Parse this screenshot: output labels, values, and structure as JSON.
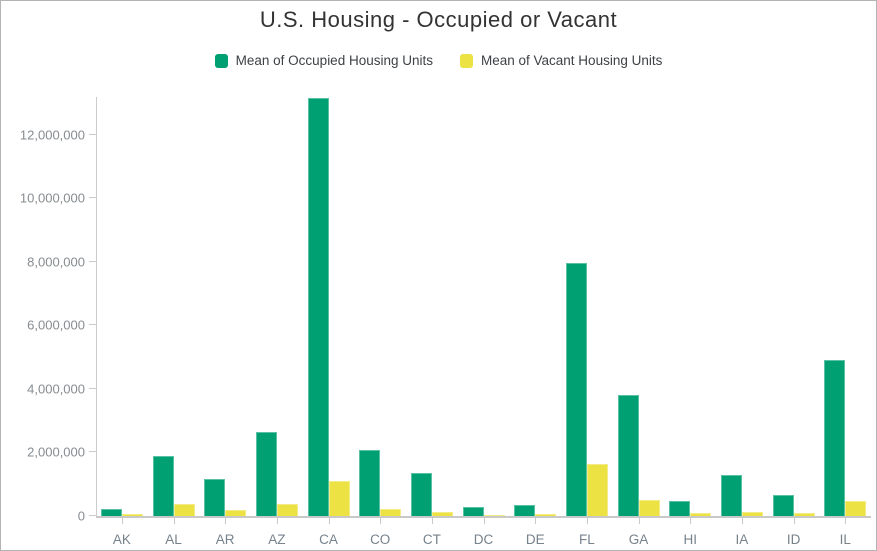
{
  "title": "U.S. Housing - Occupied or Vacant",
  "legend": {
    "items": [
      {
        "label": "Mean of Occupied Housing Units",
        "color": "#00a073"
      },
      {
        "label": "Mean of Vacant Housing Units",
        "color": "#ede244"
      }
    ]
  },
  "chart_data": {
    "type": "bar",
    "title": "U.S. Housing - Occupied or Vacant",
    "categories": [
      "AK",
      "AL",
      "AR",
      "AZ",
      "CA",
      "CO",
      "CT",
      "DC",
      "DE",
      "FL",
      "GA",
      "HI",
      "IA",
      "ID",
      "IL"
    ],
    "series": [
      {
        "name": "Mean of Occupied Housing Units",
        "color": "#00a073",
        "values": [
          230000,
          1900000,
          1170000,
          2650000,
          13150000,
          2090000,
          1360000,
          270000,
          350000,
          7950000,
          3800000,
          460000,
          1280000,
          650000,
          4900000
        ]
      },
      {
        "name": "Mean of Vacant Housing Units",
        "color": "#ede244",
        "values": [
          60000,
          380000,
          200000,
          390000,
          1100000,
          210000,
          130000,
          30000,
          60000,
          1620000,
          490000,
          90000,
          130000,
          90000,
          470000
        ]
      }
    ],
    "xlabel": "",
    "ylabel": "",
    "ylim": [
      0,
      13180000
    ],
    "yticks": [
      0,
      2000000,
      4000000,
      6000000,
      8000000,
      10000000,
      12000000
    ],
    "ytick_labels": [
      "0",
      "2,000,000",
      "4,000,000",
      "6,000,000",
      "8,000,000",
      "10,000,000",
      "12,000,000"
    ],
    "grid": false,
    "legend_position": "top-center"
  },
  "colors": {
    "axis_line": "#cccccc",
    "tick": "#c9c9c9",
    "y_label": "#878c90",
    "x_label": "#76828c",
    "title": "#333333",
    "legend_text": "#3e4246"
  }
}
